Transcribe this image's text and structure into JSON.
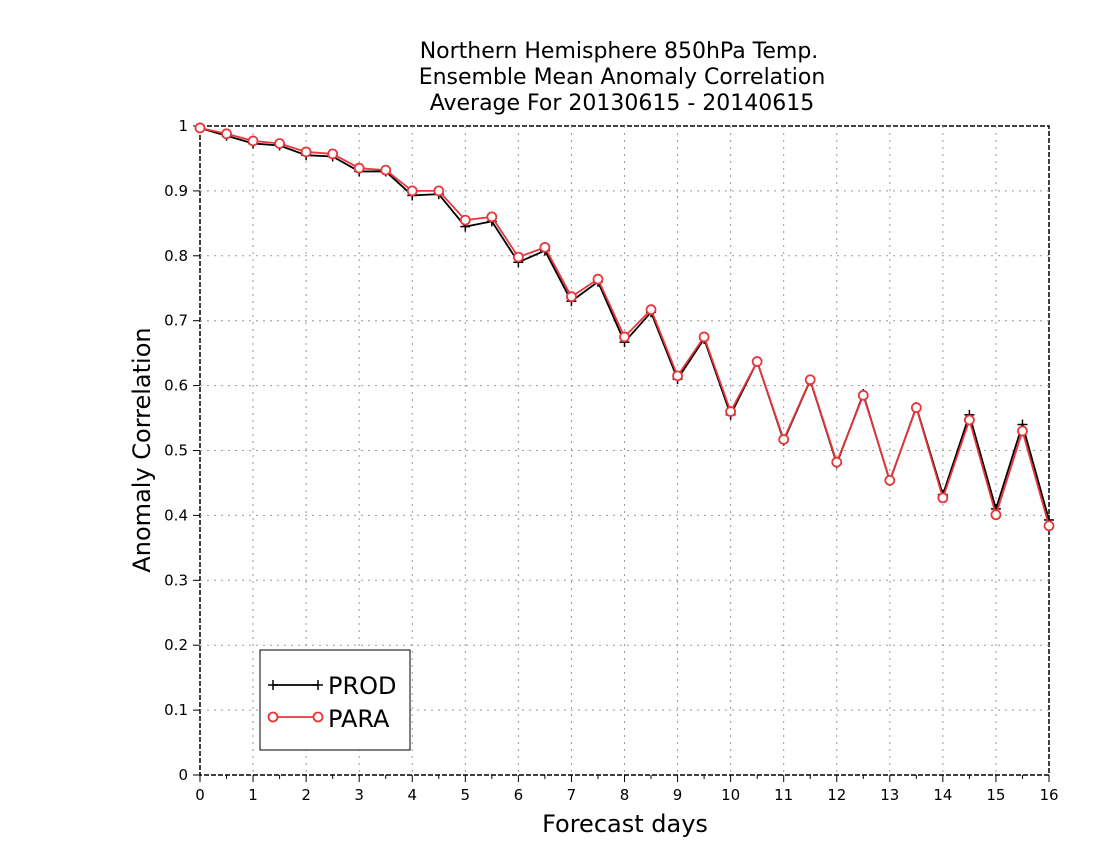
{
  "chart_data": {
    "type": "line",
    "title": [
      "Northern Hemisphere 850hPa Temp.",
      "Ensemble Mean Anomaly Correlation",
      "Average For 20130615 - 20140615"
    ],
    "xlabel": "Forecast days",
    "ylabel": "Anomaly Correlation",
    "xlim": [
      0,
      16
    ],
    "ylim": [
      0,
      1
    ],
    "grid": true,
    "legend_position": "bottom-left",
    "x_ticks": [
      "0",
      "1",
      "2",
      "3",
      "4",
      "5",
      "6",
      "7",
      "8",
      "9",
      "10",
      "11",
      "12",
      "13",
      "14",
      "15",
      "16"
    ],
    "y_ticks": [
      "0",
      "0.1",
      "0.2",
      "0.3",
      "0.4",
      "0.5",
      "0.6",
      "0.7",
      "0.8",
      "0.9",
      "1"
    ],
    "x": [
      0,
      0.5,
      1,
      1.5,
      2,
      2.5,
      3,
      3.5,
      4,
      4.5,
      5,
      5.5,
      6,
      6.5,
      7,
      7.5,
      8,
      8.5,
      9,
      9.5,
      10,
      10.5,
      11,
      11.5,
      12,
      12.5,
      13,
      13.5,
      14,
      14.5,
      15,
      15.5,
      16
    ],
    "series": [
      {
        "name": "PROD",
        "color": "#000000",
        "marker": "plus",
        "values": [
          0.997,
          0.985,
          0.973,
          0.97,
          0.955,
          0.953,
          0.93,
          0.93,
          0.893,
          0.895,
          0.845,
          0.853,
          0.79,
          0.808,
          0.73,
          0.76,
          0.667,
          0.713,
          0.61,
          0.672,
          0.555,
          0.637,
          0.515,
          0.608,
          0.48,
          0.587,
          0.453,
          0.567,
          0.432,
          0.555,
          0.41,
          0.54,
          0.393
        ]
      },
      {
        "name": "PARA",
        "color": "#e8363a",
        "marker": "circle",
        "values": [
          0.997,
          0.988,
          0.977,
          0.973,
          0.96,
          0.957,
          0.935,
          0.932,
          0.9,
          0.9,
          0.855,
          0.86,
          0.798,
          0.813,
          0.737,
          0.764,
          0.675,
          0.717,
          0.615,
          0.675,
          0.56,
          0.637,
          0.517,
          0.609,
          0.482,
          0.585,
          0.454,
          0.566,
          0.427,
          0.547,
          0.401,
          0.53,
          0.384
        ]
      }
    ]
  }
}
